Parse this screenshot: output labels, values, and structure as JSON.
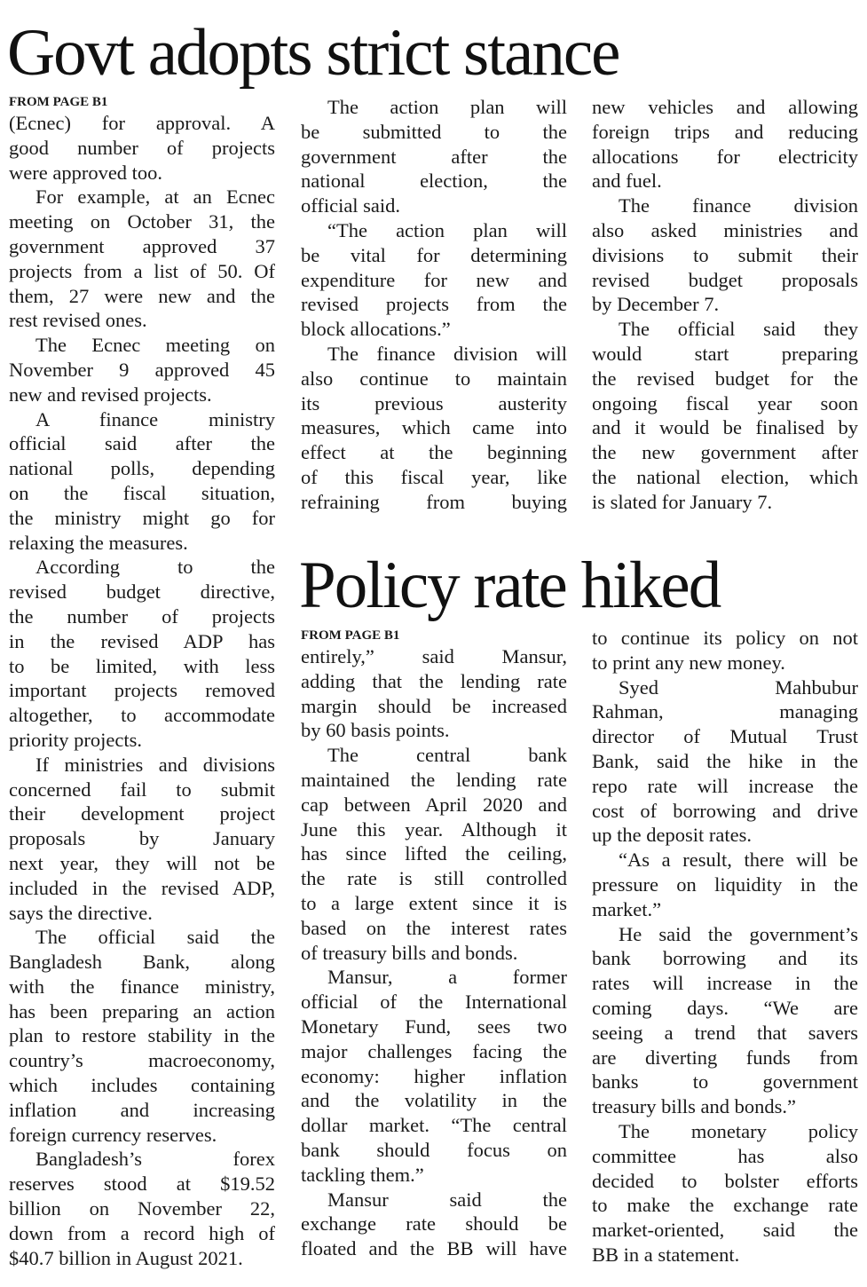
{
  "articles": [
    {
      "headline": "Govt adopts strict stance",
      "from_page": "FROM PAGE B1",
      "columns": [
        [
          {
            "indent": false,
            "lines": [
              "(Ecnec) for approval. A",
              "good number of projects",
              "were approved too."
            ]
          },
          {
            "indent": true,
            "lines": [
              "For example, at an Ecnec",
              "meeting on October 31, the",
              "government approved 37",
              "projects from a list of 50. Of",
              "them, 27 were new and the",
              "rest revised ones."
            ]
          },
          {
            "indent": true,
            "lines": [
              "The Ecnec meeting on",
              "November 9 approved 45",
              "new and revised projects."
            ]
          },
          {
            "indent": true,
            "lines": [
              "A finance ministry",
              "official said after the",
              "national polls, depending",
              "on the fiscal situation,",
              "the ministry might go for",
              "relaxing the measures."
            ]
          },
          {
            "indent": true,
            "lines": [
              "According to the",
              "revised budget directive,",
              "the number of projects",
              "in the revised ADP has",
              "to be limited, with less",
              "important projects removed",
              "altogether, to accommodate",
              "priority projects."
            ]
          },
          {
            "indent": true,
            "lines": [
              "If ministries and divisions",
              "concerned fail to submit",
              "their development project",
              "proposals by January",
              "next year, they will not be",
              "included in the revised ADP,",
              "says the directive."
            ]
          },
          {
            "indent": true,
            "lines": [
              "The official said the",
              "Bangladesh Bank, along",
              "with the finance ministry,",
              "has been preparing an action",
              "plan to restore stability in the",
              "country’s macroeconomy,",
              "which includes containing",
              "inflation and increasing",
              "foreign currency reserves."
            ]
          },
          {
            "indent": true,
            "lines": [
              "Bangladesh’s forex",
              "reserves stood at $19.52",
              "billion on November 22,",
              "down from a record high of",
              "$40.7 billion in August 2021."
            ]
          }
        ],
        [
          {
            "indent": true,
            "lines": [
              "The action plan will",
              "be submitted to the",
              "government after the",
              "national election, the",
              "official said."
            ]
          },
          {
            "indent": true,
            "lines": [
              "“The action plan will",
              "be vital for determining",
              "expenditure for new and",
              "revised projects from the",
              "block allocations.”"
            ]
          },
          {
            "indent": true,
            "continues": true,
            "lines": [
              "The finance division will",
              "also continue to maintain",
              "its previous austerity",
              "measures, which came into",
              "effect at the beginning",
              "of this fiscal year, like",
              "refraining from buying"
            ]
          }
        ],
        [
          {
            "indent": false,
            "lines": [
              "new vehicles and allowing",
              "foreign trips and reducing",
              "allocations for electricity",
              "and fuel."
            ]
          },
          {
            "indent": true,
            "lines": [
              "The finance division",
              "also asked ministries and",
              "divisions to submit their",
              "revised budget proposals",
              "by December 7."
            ]
          },
          {
            "indent": true,
            "lines": [
              "The official said they",
              "would start preparing",
              "the revised budget for the",
              "ongoing fiscal year soon",
              "and it would be finalised by",
              "the new government after",
              "the national election, which",
              "is slated for January 7."
            ]
          }
        ]
      ]
    },
    {
      "headline": "Policy rate hiked",
      "from_page": "FROM PAGE B1",
      "columns": [
        [
          {
            "indent": false,
            "lines": [
              "entirely,” said Mansur,",
              "adding that the lending rate",
              "margin should be increased",
              "by 60 basis points."
            ]
          },
          {
            "indent": true,
            "lines": [
              "The central bank",
              "maintained the lending rate",
              "cap between April 2020 and",
              "June this year. Although it",
              "has since lifted the ceiling,",
              "the rate is still controlled",
              "to a large extent since it is",
              "based on the interest rates",
              "of treasury bills and bonds."
            ]
          },
          {
            "indent": true,
            "lines": [
              "Mansur, a former",
              "official of the International",
              "Monetary Fund, sees two",
              "major challenges facing the",
              "economy: higher inflation",
              "and the volatility in the",
              "dollar market. “The central",
              "bank should focus on",
              "tackling them.”"
            ]
          },
          {
            "indent": true,
            "continues": true,
            "lines": [
              "Mansur said the",
              "exchange rate should be",
              "floated and the BB will have"
            ]
          }
        ],
        [
          {
            "indent": false,
            "lines": [
              "to continue its policy on not",
              "to print any new money."
            ]
          },
          {
            "indent": true,
            "lines": [
              "Syed Mahbubur",
              "Rahman, managing",
              "director of Mutual Trust",
              "Bank, said the hike in the",
              "repo rate will increase the",
              "cost of borrowing and drive",
              "up the deposit rates."
            ]
          },
          {
            "indent": true,
            "lines": [
              "“As a result, there will be",
              "pressure on liquidity in the",
              "market.”"
            ]
          },
          {
            "indent": true,
            "lines": [
              "He said the government’s",
              "bank borrowing and its",
              "rates will increase in the",
              "coming days. “We are",
              "seeing a trend that savers",
              "are diverting funds from",
              "banks to government",
              "treasury bills and bonds.”"
            ]
          },
          {
            "indent": true,
            "lines": [
              "The monetary policy",
              "committee has also",
              "decided to bolster efforts",
              "to make the exchange rate",
              "market-oriented, said the",
              "BB in a statement."
            ]
          }
        ]
      ]
    }
  ]
}
